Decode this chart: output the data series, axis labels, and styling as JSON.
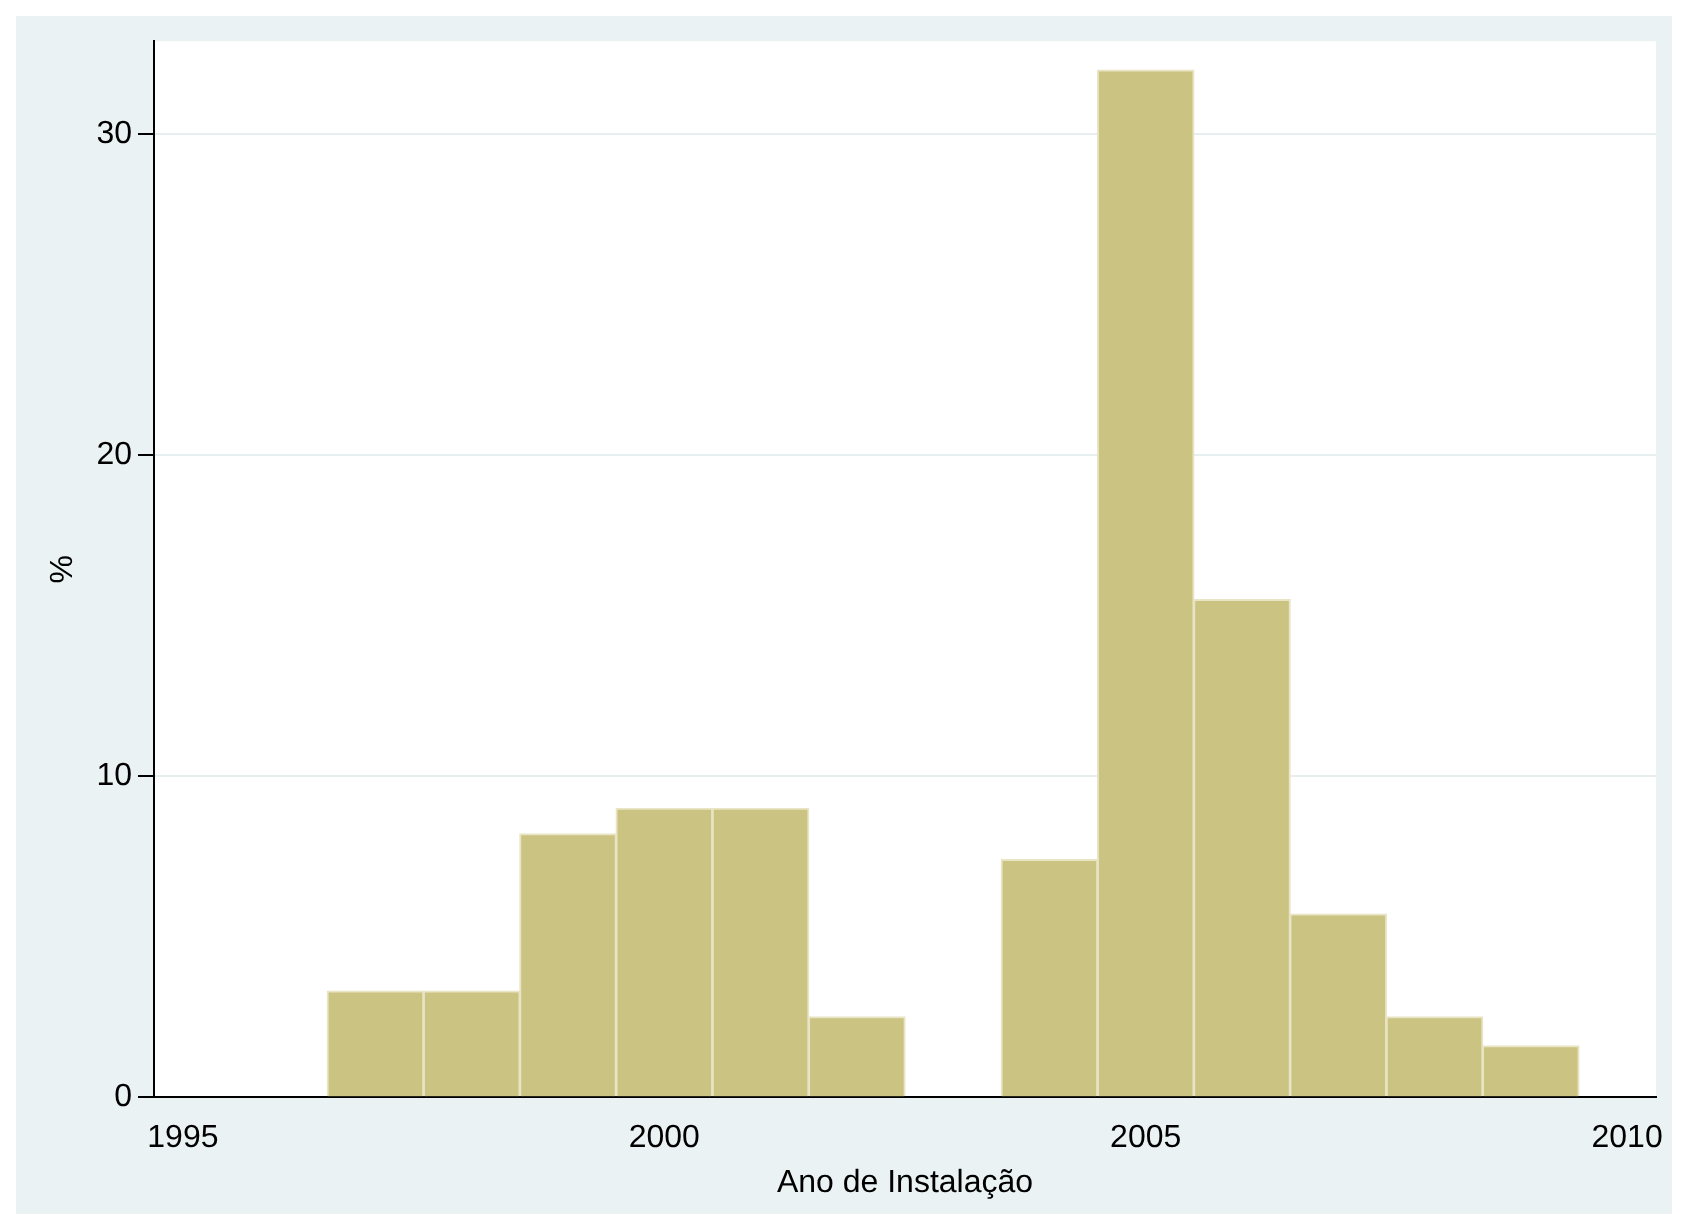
{
  "chart_data": {
    "type": "histogram",
    "xlabel": "Ano de Instalação",
    "ylabel": "%",
    "bins": [
      1996.5,
      1997.5,
      1998.5,
      1999.5,
      2000.5,
      2001.5,
      2002.5,
      2003.5,
      2004.5,
      2005.5,
      2006.5,
      2007.5,
      2008.5,
      2009.5
    ],
    "values": [
      3.3,
      3.3,
      8.2,
      9.0,
      9.0,
      2.5,
      0,
      7.4,
      32.0,
      15.5,
      5.7,
      2.5,
      1.6
    ],
    "color": "#cbc382",
    "xlim": [
      1994.7,
      2010.3
    ],
    "xticks": [
      1995,
      2000,
      2005,
      2010
    ],
    "ylim": [
      0,
      32.9
    ],
    "yticks": [
      0,
      10,
      20,
      30
    ],
    "grid": "y"
  }
}
